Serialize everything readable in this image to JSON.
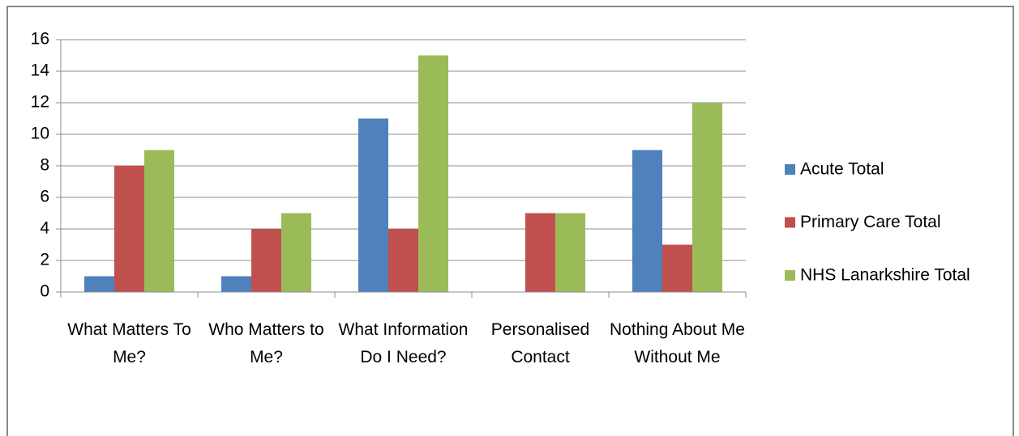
{
  "chart_data": {
    "type": "bar",
    "categories": [
      "What Matters To Me?",
      "Who Matters to Me?",
      "What Information Do I Need?",
      "Personalised Contact",
      "Nothing About Me Without Me"
    ],
    "series": [
      {
        "name": "Acute Total",
        "color": "#4f81bd",
        "values": [
          1,
          1,
          11,
          0,
          9
        ]
      },
      {
        "name": "Primary Care Total",
        "color": "#c0504d",
        "values": [
          8,
          4,
          4,
          5,
          3
        ]
      },
      {
        "name": "NHS Lanarkshire Total",
        "color": "#9bbb59",
        "values": [
          9,
          5,
          15,
          5,
          12
        ]
      }
    ],
    "ylim": [
      0,
      16
    ],
    "yticks": [
      0,
      2,
      4,
      6,
      8,
      10,
      12,
      14,
      16
    ],
    "grid": true,
    "legend": "right"
  }
}
